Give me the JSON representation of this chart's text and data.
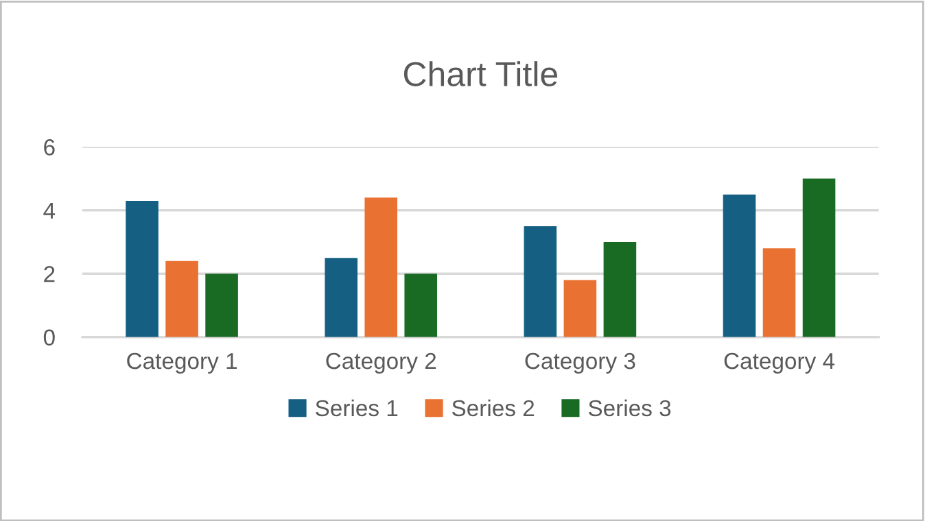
{
  "chart_data": {
    "type": "bar",
    "title": "Chart Title",
    "categories": [
      "Category 1",
      "Category 2",
      "Category 3",
      "Category 4"
    ],
    "series": [
      {
        "name": "Series 1",
        "color": "#156082",
        "values": [
          4.3,
          2.5,
          3.5,
          4.5
        ]
      },
      {
        "name": "Series 2",
        "color": "#e97132",
        "values": [
          2.4,
          4.4,
          1.8,
          2.8
        ]
      },
      {
        "name": "Series 3",
        "color": "#196b24",
        "values": [
          2,
          2,
          3,
          5
        ]
      }
    ],
    "ylim": [
      0,
      6
    ],
    "yticks": [
      0,
      2,
      4,
      6
    ],
    "grid": "y",
    "legend": "bottom"
  }
}
